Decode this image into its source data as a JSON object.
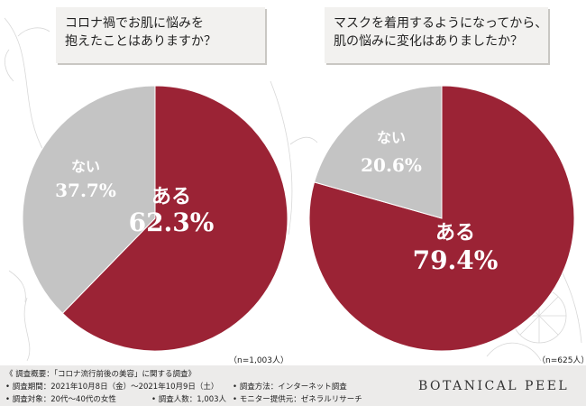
{
  "questions": {
    "q1_line1": "コロナ禍でお肌に悩みを",
    "q1_line2": "抱えたことはありますか？",
    "q2_line1": "マスクを着用するようになってから、",
    "q2_line2": "肌の悩みに変化はありましたか？"
  },
  "sample_notes": {
    "left": "（n=1,003人）",
    "right": "（n=625人）"
  },
  "survey": {
    "title": "《 調査概要：「コロナ流行前後の美容」に関する調査》",
    "period": "• 調査期間：2021年10月8日（金）〜2021年10月9日（土）",
    "target": "• 調査対象：20代〜40代の女性",
    "method": "• 調査方法：インターネット調査",
    "respondents": "• 調査人数：1,003人",
    "provider": "• モニター提供元：ゼネラルリサーチ"
  },
  "brand": "BOTANICAL PEEL",
  "colors": {
    "yes": "#9b2335",
    "no": "#c4c4c4",
    "label_on_yes": "#ffffff",
    "label_on_no": "#ffffff"
  },
  "chart_data": [
    {
      "type": "pie",
      "categories": [
        "ある",
        "ない"
      ],
      "values": [
        62.3,
        37.7
      ],
      "labels": [
        "62.3%",
        "37.7%"
      ],
      "start": "12 o'clock, clockwise"
    },
    {
      "type": "pie",
      "categories": [
        "ある",
        "ない"
      ],
      "values": [
        79.4,
        20.6
      ],
      "labels": [
        "79.4%",
        "20.6%"
      ],
      "start": "12 o'clock, clockwise"
    }
  ]
}
